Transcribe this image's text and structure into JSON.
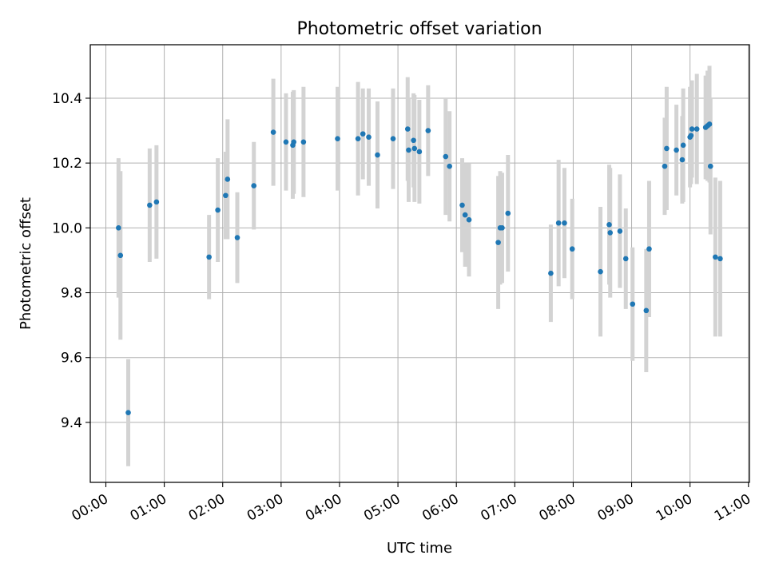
{
  "chart_data": {
    "type": "scatter",
    "title": "Photometric offset variation",
    "xlabel": "UTC time",
    "ylabel": "Photometric offset",
    "xlim": [
      "-00:16",
      "11:01"
    ],
    "ylim": [
      9.215,
      10.565
    ],
    "grid": true,
    "xticks": [
      "00:00",
      "01:00",
      "02:00",
      "03:00",
      "04:00",
      "05:00",
      "06:00",
      "07:00",
      "08:00",
      "09:00",
      "10:00",
      "11:00"
    ],
    "yticks": [
      9.4,
      9.6,
      9.8,
      10.0,
      10.2,
      10.4
    ],
    "colors": {
      "point": "#1f77b4",
      "errorbar": "#d3d3d3",
      "grid": "#b0b0b0"
    },
    "series": [
      {
        "x": [
          "00:13",
          "00:15",
          "00:23",
          "00:45",
          "00:52",
          "01:46",
          "01:55",
          "02:03",
          "02:05",
          "02:15",
          "02:32",
          "02:52",
          "03:05",
          "03:12",
          "03:13",
          "03:23",
          "03:58",
          "04:19",
          "04:24",
          "04:30",
          "04:39",
          "04:55",
          "05:10",
          "05:11",
          "05:16",
          "05:17",
          "05:22",
          "05:31",
          "05:49",
          "05:53",
          "06:06",
          "06:09",
          "06:13",
          "06:43",
          "06:45",
          "06:47",
          "06:53",
          "07:37",
          "07:45",
          "07:51",
          "07:59",
          "08:28",
          "08:37",
          "08:38",
          "08:48",
          "08:54",
          "09:01",
          "09:15",
          "09:18",
          "09:34",
          "09:36",
          "09:46",
          "09:52",
          "09:53",
          "10:00",
          "10:01",
          "10:02",
          "10:07",
          "10:16",
          "10:18",
          "10:20",
          "10:21",
          "10:26",
          "10:31"
        ],
        "y": [
          10.0,
          9.915,
          9.43,
          10.07,
          10.08,
          9.91,
          10.055,
          10.1,
          10.15,
          9.97,
          10.13,
          10.295,
          10.265,
          10.255,
          10.265,
          10.265,
          10.275,
          10.275,
          10.29,
          10.28,
          10.225,
          10.275,
          10.305,
          10.24,
          10.27,
          10.245,
          10.235,
          10.3,
          10.22,
          10.19,
          10.07,
          10.04,
          10.025,
          9.955,
          10.0,
          10.0,
          10.045,
          9.86,
          10.015,
          10.015,
          9.935,
          9.865,
          10.01,
          9.985,
          9.99,
          9.905,
          9.765,
          9.745,
          9.935,
          10.19,
          10.245,
          10.24,
          10.21,
          10.255,
          10.28,
          10.285,
          10.305,
          10.305,
          10.31,
          10.315,
          10.32,
          10.19,
          9.91,
          9.905
        ],
        "yerr": [
          0.215,
          0.26,
          0.165,
          0.175,
          0.175,
          0.13,
          0.16,
          0.135,
          0.185,
          0.14,
          0.135,
          0.165,
          0.15,
          0.165,
          0.16,
          0.17,
          0.16,
          0.175,
          0.14,
          0.15,
          0.165,
          0.155,
          0.16,
          0.16,
          0.145,
          0.165,
          0.16,
          0.14,
          0.18,
          0.17,
          0.145,
          0.16,
          0.175,
          0.205,
          0.175,
          0.17,
          0.18,
          0.15,
          0.195,
          0.17,
          0.155,
          0.2,
          0.185,
          0.2,
          0.175,
          0.155,
          0.175,
          0.19,
          0.21,
          0.15,
          0.19,
          0.14,
          0.135,
          0.175,
          0.155,
          0.15,
          0.15,
          0.17,
          0.16,
          0.17,
          0.18,
          0.21,
          0.245,
          0.24
        ]
      }
    ]
  }
}
